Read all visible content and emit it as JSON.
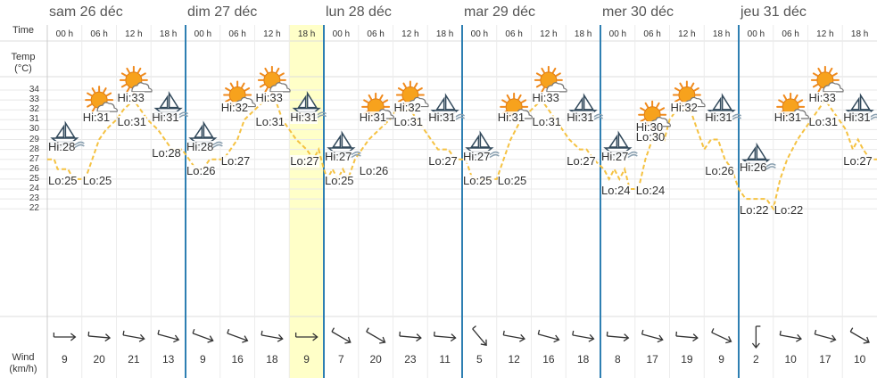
{
  "days": [
    "sam 26 déc",
    "dim 27 déc",
    "lun 28 déc",
    "mar 29 déc",
    "mer 30 déc",
    "jeu 31 déc"
  ],
  "hours": [
    "00 h",
    "06 h",
    "12 h",
    "18 h"
  ],
  "axis": {
    "time": "Time",
    "temp_line1": "Temp",
    "temp_line2": "(°C)",
    "wind_line1": "Wind",
    "wind_line2": "(km/h)"
  },
  "temp_ticks": [
    "34",
    "33",
    "32",
    "31",
    "30",
    "29",
    "28",
    "27",
    "26",
    "25",
    "24",
    "23",
    "22"
  ],
  "highlight_slot": 7,
  "colors": {
    "day_border": "#2e7fb2",
    "temp_line": "#f5c242",
    "highlight": "#ffffc8",
    "grid": "#e8e8e8"
  },
  "slots": [
    {
      "icon": "sailboat-icon",
      "wind": "9",
      "wind_dir": 270
    },
    {
      "icon": "sun-cloud-icon",
      "wind": "20",
      "wind_dir": 275
    },
    {
      "icon": "sun-cloud-icon",
      "wind": "21",
      "wind_dir": 280
    },
    {
      "icon": "sailboat-icon",
      "wind": "13",
      "wind_dir": 285
    },
    {
      "icon": "sailboat-icon",
      "wind": "9",
      "wind_dir": 290
    },
    {
      "icon": "sun-cloud-icon",
      "wind": "16",
      "wind_dir": 290
    },
    {
      "icon": "sun-cloud-icon",
      "wind": "18",
      "wind_dir": 280
    },
    {
      "icon": "sailboat-icon",
      "wind": "9",
      "wind_dir": 270
    },
    {
      "icon": "sailboat-icon",
      "wind": "7",
      "wind_dir": 300
    },
    {
      "icon": "sun-cloud-icon",
      "wind": "20",
      "wind_dir": 300
    },
    {
      "icon": "sun-cloud-icon",
      "wind": "23",
      "wind_dir": 275
    },
    {
      "icon": "sailboat-icon",
      "wind": "11",
      "wind_dir": 275
    },
    {
      "icon": "sailboat-icon",
      "wind": "5",
      "wind_dir": 320
    },
    {
      "icon": "sun-cloud-icon",
      "wind": "12",
      "wind_dir": 280
    },
    {
      "icon": "sun-cloud-icon",
      "wind": "16",
      "wind_dir": 285
    },
    {
      "icon": "sailboat-icon",
      "wind": "18",
      "wind_dir": 280
    },
    {
      "icon": "sailboat-icon",
      "wind": "8",
      "wind_dir": 275
    },
    {
      "icon": "sun-cloud-icon",
      "wind": "17",
      "wind_dir": 285
    },
    {
      "icon": "sun-cloud-icon",
      "wind": "19",
      "wind_dir": 275
    },
    {
      "icon": "sailboat-icon",
      "wind": "9",
      "wind_dir": 295
    },
    {
      "icon": "sailboat-icon",
      "wind": "2",
      "wind_dir": 0
    },
    {
      "icon": "sun-cloud-icon",
      "wind": "10",
      "wind_dir": 280
    },
    {
      "icon": "sun-cloud-icon",
      "wind": "17",
      "wind_dir": 285
    },
    {
      "icon": "sailboat-icon",
      "wind": "10",
      "wind_dir": 300
    }
  ],
  "icon_temps": [
    29.5,
    33,
    35,
    32.5,
    29.5,
    33.5,
    35,
    32.5,
    28.5,
    32.3,
    33.5,
    32.3,
    28.5,
    32.3,
    35,
    32.3,
    28.5,
    31.5,
    33.5,
    32.3,
    27.3,
    32.3,
    35,
    32.3
  ],
  "labels": [
    {
      "text": "Hi:28",
      "slot": 0,
      "temp": 28.2
    },
    {
      "text": "Lo:25",
      "slot": 0,
      "temp": 24.8
    },
    {
      "text": "Lo:25",
      "slot": 1,
      "temp": 24.8
    },
    {
      "text": "Hi:31",
      "slot": 1,
      "temp": 31.2
    },
    {
      "text": "Hi:33",
      "slot": 2,
      "temp": 33.2
    },
    {
      "text": "Lo:31",
      "slot": 2,
      "temp": 30.8
    },
    {
      "text": "Hi:31",
      "slot": 3,
      "temp": 31.2
    },
    {
      "text": "Lo:28",
      "slot": 3,
      "temp": 27.6
    },
    {
      "text": "Hi:28",
      "slot": 4,
      "temp": 28.2
    },
    {
      "text": "Lo:26",
      "slot": 4,
      "temp": 25.8
    },
    {
      "text": "Lo:27",
      "slot": 5,
      "temp": 26.8
    },
    {
      "text": "Hi:32",
      "slot": 5,
      "temp": 32.2
    },
    {
      "text": "Hi:33",
      "slot": 6,
      "temp": 33.2
    },
    {
      "text": "Lo:31",
      "slot": 6,
      "temp": 30.8
    },
    {
      "text": "Hi:31",
      "slot": 7,
      "temp": 31.2
    },
    {
      "text": "Lo:27",
      "slot": 7,
      "temp": 26.8
    },
    {
      "text": "Hi:27",
      "slot": 8,
      "temp": 27.2
    },
    {
      "text": "Lo:25",
      "slot": 8,
      "temp": 24.8
    },
    {
      "text": "Lo:26",
      "slot": 9,
      "temp": 25.8
    },
    {
      "text": "Hi:31",
      "slot": 9,
      "temp": 31.2
    },
    {
      "text": "Hi:32",
      "slot": 10,
      "temp": 32.2
    },
    {
      "text": "Lo:31",
      "slot": 10,
      "temp": 30.8
    },
    {
      "text": "Hi:31",
      "slot": 11,
      "temp": 31.2
    },
    {
      "text": "Lo:27",
      "slot": 11,
      "temp": 26.8
    },
    {
      "text": "Hi:27",
      "slot": 12,
      "temp": 27.2
    },
    {
      "text": "Lo:25",
      "slot": 12,
      "temp": 24.8
    },
    {
      "text": "Lo:25",
      "slot": 13,
      "temp": 24.8
    },
    {
      "text": "Hi:31",
      "slot": 13,
      "temp": 31.2
    },
    {
      "text": "Hi:33",
      "slot": 14,
      "temp": 33.2
    },
    {
      "text": "Lo:31",
      "slot": 14,
      "temp": 30.8
    },
    {
      "text": "Hi:31",
      "slot": 15,
      "temp": 31.2
    },
    {
      "text": "Lo:27",
      "slot": 15,
      "temp": 26.8
    },
    {
      "text": "Hi:27",
      "slot": 16,
      "temp": 27.2
    },
    {
      "text": "Lo:24",
      "slot": 16,
      "temp": 23.8
    },
    {
      "text": "Lo:24",
      "slot": 17,
      "temp": 23.8
    },
    {
      "text": "Hi:30",
      "slot": 17,
      "temp": 30.2
    },
    {
      "text": "Lo:30",
      "slot": 17,
      "temp": 29.2
    },
    {
      "text": "Hi:32",
      "slot": 18,
      "temp": 32.2
    },
    {
      "text": "Hi:31",
      "slot": 19,
      "temp": 31.2
    },
    {
      "text": "Lo:26",
      "slot": 19,
      "temp": 25.8
    },
    {
      "text": "Hi:26",
      "slot": 20,
      "temp": 26.2
    },
    {
      "text": "Lo:22",
      "slot": 20,
      "temp": 21.8
    },
    {
      "text": "Lo:22",
      "slot": 21,
      "temp": 21.8
    },
    {
      "text": "Hi:31",
      "slot": 21,
      "temp": 31.2
    },
    {
      "text": "Hi:33",
      "slot": 22,
      "temp": 33.2
    },
    {
      "text": "Lo:31",
      "slot": 22,
      "temp": 30.8
    },
    {
      "text": "Hi:31",
      "slot": 23,
      "temp": 31.2
    },
    {
      "text": "Lo:27",
      "slot": 23,
      "temp": 26.8
    }
  ],
  "temp_series": [
    {
      "slot": 0.0,
      "temp": 27
    },
    {
      "slot": 0.2,
      "temp": 27
    },
    {
      "slot": 0.3,
      "temp": 26
    },
    {
      "slot": 0.6,
      "temp": 26
    },
    {
      "slot": 0.75,
      "temp": 25
    },
    {
      "slot": 1.1,
      "temp": 25
    },
    {
      "slot": 1.3,
      "temp": 27
    },
    {
      "slot": 1.5,
      "temp": 29
    },
    {
      "slot": 1.7,
      "temp": 30
    },
    {
      "slot": 2.0,
      "temp": 31
    },
    {
      "slot": 2.2,
      "temp": 32
    },
    {
      "slot": 2.5,
      "temp": 33
    },
    {
      "slot": 2.7,
      "temp": 32
    },
    {
      "slot": 2.9,
      "temp": 31
    },
    {
      "slot": 3.2,
      "temp": 30
    },
    {
      "slot": 3.4,
      "temp": 29
    },
    {
      "slot": 3.6,
      "temp": 28
    },
    {
      "slot": 3.9,
      "temp": 28
    },
    {
      "slot": 4.1,
      "temp": 27
    },
    {
      "slot": 4.3,
      "temp": 26
    },
    {
      "slot": 4.5,
      "temp": 26
    },
    {
      "slot": 4.7,
      "temp": 27
    },
    {
      "slot": 5.1,
      "temp": 27
    },
    {
      "slot": 5.3,
      "temp": 28
    },
    {
      "slot": 5.5,
      "temp": 29
    },
    {
      "slot": 5.7,
      "temp": 31
    },
    {
      "slot": 6.0,
      "temp": 32
    },
    {
      "slot": 6.3,
      "temp": 33
    },
    {
      "slot": 6.6,
      "temp": 33
    },
    {
      "slot": 6.8,
      "temp": 31
    },
    {
      "slot": 7.0,
      "temp": 30
    },
    {
      "slot": 7.2,
      "temp": 29
    },
    {
      "slot": 7.5,
      "temp": 28
    },
    {
      "slot": 7.7,
      "temp": 27
    },
    {
      "slot": 7.85,
      "temp": 28
    },
    {
      "slot": 8.0,
      "temp": 26
    },
    {
      "slot": 8.1,
      "temp": 25
    },
    {
      "slot": 8.25,
      "temp": 26
    },
    {
      "slot": 8.4,
      "temp": 25
    },
    {
      "slot": 8.55,
      "temp": 26
    },
    {
      "slot": 8.7,
      "temp": 25
    },
    {
      "slot": 8.9,
      "temp": 27
    },
    {
      "slot": 9.1,
      "temp": 28
    },
    {
      "slot": 9.3,
      "temp": 29
    },
    {
      "slot": 9.6,
      "temp": 30
    },
    {
      "slot": 9.9,
      "temp": 31
    },
    {
      "slot": 10.1,
      "temp": 32
    },
    {
      "slot": 10.5,
      "temp": 32
    },
    {
      "slot": 10.7,
      "temp": 31
    },
    {
      "slot": 10.9,
      "temp": 30
    },
    {
      "slot": 11.1,
      "temp": 29
    },
    {
      "slot": 11.3,
      "temp": 28
    },
    {
      "slot": 11.6,
      "temp": 28
    },
    {
      "slot": 11.8,
      "temp": 27
    },
    {
      "slot": 12.1,
      "temp": 27
    },
    {
      "slot": 12.2,
      "temp": 26
    },
    {
      "slot": 12.3,
      "temp": 25
    },
    {
      "slot": 12.9,
      "temp": 25
    },
    {
      "slot": 13.0,
      "temp": 25
    },
    {
      "slot": 13.2,
      "temp": 27
    },
    {
      "slot": 13.4,
      "temp": 29
    },
    {
      "slot": 13.7,
      "temp": 31
    },
    {
      "slot": 14.0,
      "temp": 32
    },
    {
      "slot": 14.3,
      "temp": 33
    },
    {
      "slot": 14.5,
      "temp": 32
    },
    {
      "slot": 14.7,
      "temp": 31
    },
    {
      "slot": 14.9,
      "temp": 30
    },
    {
      "slot": 15.1,
      "temp": 29
    },
    {
      "slot": 15.4,
      "temp": 28
    },
    {
      "slot": 15.6,
      "temp": 28
    },
    {
      "slot": 15.8,
      "temp": 27
    },
    {
      "slot": 16.1,
      "temp": 26
    },
    {
      "slot": 16.25,
      "temp": 25
    },
    {
      "slot": 16.4,
      "temp": 26
    },
    {
      "slot": 16.55,
      "temp": 25
    },
    {
      "slot": 16.7,
      "temp": 26
    },
    {
      "slot": 16.85,
      "temp": 24
    },
    {
      "slot": 17.1,
      "temp": 24
    },
    {
      "slot": 17.3,
      "temp": 27
    },
    {
      "slot": 17.5,
      "temp": 29
    },
    {
      "slot": 17.7,
      "temp": 30
    },
    {
      "slot": 17.85,
      "temp": 29
    },
    {
      "slot": 18.0,
      "temp": 31
    },
    {
      "slot": 18.2,
      "temp": 32
    },
    {
      "slot": 18.6,
      "temp": 32
    },
    {
      "slot": 18.8,
      "temp": 30
    },
    {
      "slot": 19.0,
      "temp": 28
    },
    {
      "slot": 19.2,
      "temp": 29
    },
    {
      "slot": 19.4,
      "temp": 29
    },
    {
      "slot": 19.6,
      "temp": 27
    },
    {
      "slot": 19.8,
      "temp": 26
    },
    {
      "slot": 20.0,
      "temp": 24
    },
    {
      "slot": 20.2,
      "temp": 23
    },
    {
      "slot": 20.8,
      "temp": 23
    },
    {
      "slot": 21.0,
      "temp": 22
    },
    {
      "slot": 21.2,
      "temp": 25
    },
    {
      "slot": 21.4,
      "temp": 27
    },
    {
      "slot": 21.7,
      "temp": 29
    },
    {
      "slot": 21.9,
      "temp": 30
    },
    {
      "slot": 22.1,
      "temp": 31
    },
    {
      "slot": 22.3,
      "temp": 32
    },
    {
      "slot": 22.5,
      "temp": 33
    },
    {
      "slot": 22.7,
      "temp": 32
    },
    {
      "slot": 22.9,
      "temp": 31
    },
    {
      "slot": 23.1,
      "temp": 30
    },
    {
      "slot": 23.3,
      "temp": 28
    },
    {
      "slot": 23.45,
      "temp": 29
    },
    {
      "slot": 23.6,
      "temp": 28
    },
    {
      "slot": 23.8,
      "temp": 27
    },
    {
      "slot": 24.0,
      "temp": 27
    }
  ]
}
